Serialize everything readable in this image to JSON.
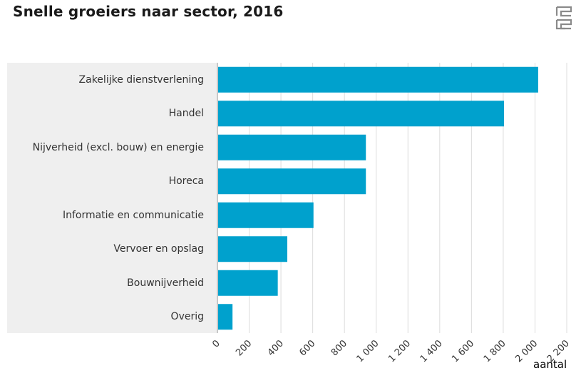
{
  "chart_data": {
    "type": "bar",
    "orientation": "horizontal",
    "title": "Snelle groeiers naar sector, 2016",
    "xlabel": "aantal",
    "ylabel": "",
    "xlim": [
      0,
      2200
    ],
    "categories": [
      "Zakelijke dienstverlening",
      "Handel",
      "Nijverheid (excl. bouw) en energie",
      "Horeca",
      "Informatie en communicatie",
      "Vervoer en opslag",
      "Bouwnijverheid",
      "Overig"
    ],
    "values": [
      2020,
      1805,
      935,
      935,
      605,
      440,
      380,
      95
    ],
    "x_ticks": [
      "0",
      "200",
      "400",
      "600",
      "800",
      "1 000",
      "1 200",
      "1 400",
      "1 600",
      "1 800",
      "2 000",
      "2 200"
    ],
    "grid": true,
    "bar_color": "#00a1cd"
  },
  "logo": {
    "name": "cbs-logo",
    "text": "cbs"
  }
}
